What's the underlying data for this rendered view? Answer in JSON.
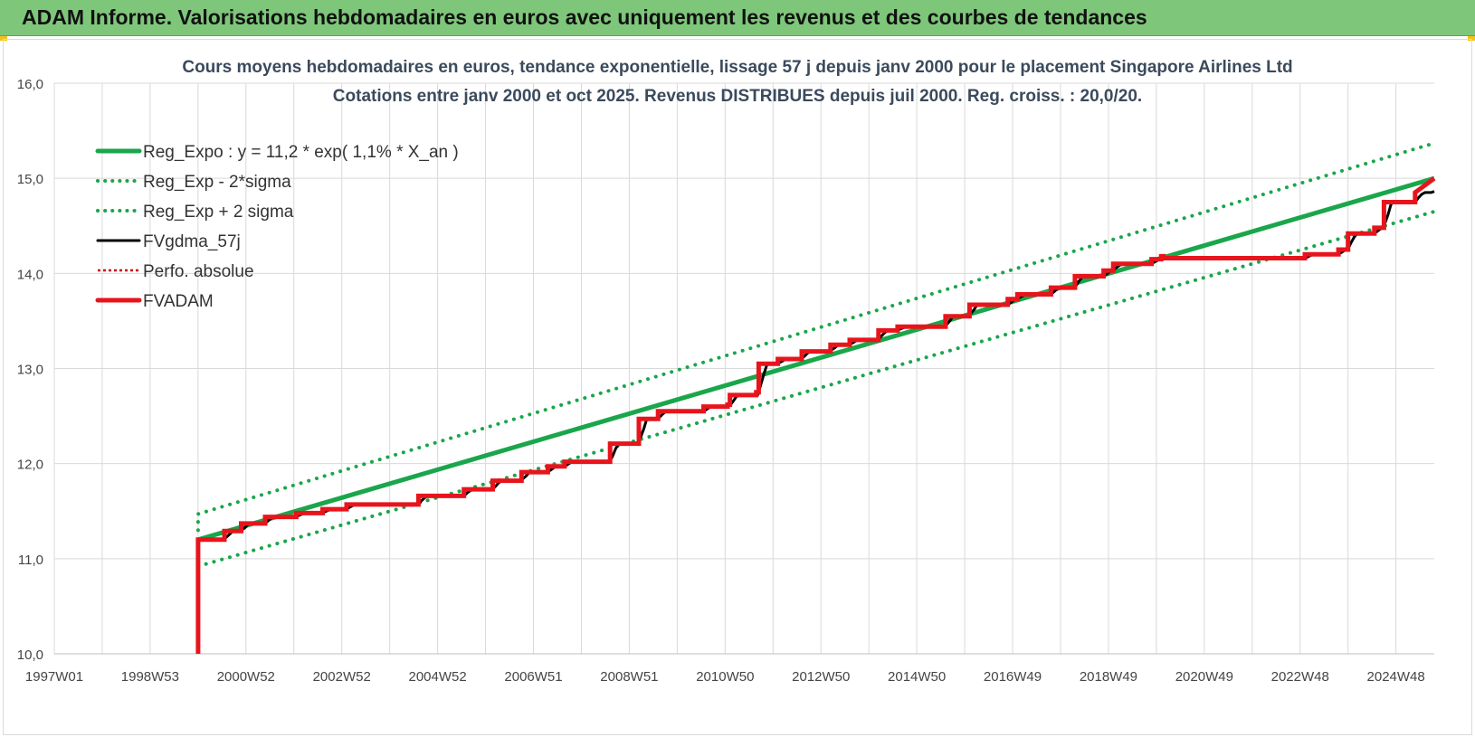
{
  "header": {
    "title": "ADAM Informe. Valorisations hebdomadaires en euros avec uniquement les revenus et des courbes de tendances"
  },
  "colors": {
    "banner": "#7ec77a",
    "trend_green": "#1aa64a",
    "band_green": "#1aa64a",
    "fvgdma_black": "#000000",
    "perfo_red": "#cc0000",
    "fvadam_red": "#e8141c"
  },
  "chart_data": {
    "type": "line",
    "title_line1": "Cours moyens hebdomadaires en euros, tendance exponentielle, lissage 57 j depuis janv 2000 pour le placement Singapore Airlines Ltd",
    "title_line2": "Cotations entre janv 2000 et oct 2025. Revenus DISTRIBUES depuis juil 2000. Reg. croiss. : 20,0/20.",
    "xlabel": "",
    "ylabel": "",
    "x_ticks": [
      "1997W01",
      "1998W53",
      "2000W52",
      "2002W52",
      "2004W52",
      "2006W51",
      "2008W51",
      "2010W50",
      "2012W50",
      "2014W50",
      "2016W49",
      "2018W49",
      "2020W49",
      "2022W48",
      "2024W48"
    ],
    "x_tick_years": [
      1997.0,
      1999.0,
      2001.0,
      2003.0,
      2005.0,
      2007.0,
      2009.0,
      2011.0,
      2013.0,
      2015.0,
      2017.0,
      2019.0,
      2021.0,
      2023.0,
      2025.0
    ],
    "xlim": [
      1997.0,
      2025.8
    ],
    "ylim": [
      10.0,
      16.0
    ],
    "y_ticks": [
      "10,0",
      "11,0",
      "12,0",
      "13,0",
      "14,0",
      "15,0",
      "16,0"
    ],
    "y_tick_values": [
      10,
      11,
      12,
      13,
      14,
      15,
      16
    ],
    "grid": true,
    "legend_position": "top-left",
    "legend": [
      {
        "label": "Reg_Expo : y = 11,2 * exp( 1,1% *  X_an )",
        "style": "solid-thick",
        "color": "#1aa64a"
      },
      {
        "label": "Reg_Exp - 2*sigma",
        "style": "dotted",
        "color": "#1aa64a"
      },
      {
        "label": "Reg_Exp + 2 sigma",
        "style": "dotted",
        "color": "#1aa64a"
      },
      {
        "label": "FVgdma_57j",
        "style": "solid",
        "color": "#000000"
      },
      {
        "label": "Perfo. absolue",
        "style": "dotted-thin",
        "color": "#cc0000"
      },
      {
        "label": "FVADAM",
        "style": "solid-thick",
        "color": "#e8141c"
      }
    ],
    "series": [
      {
        "name": "Reg_Expo : y = 11,2 * exp( 1,1% *  X_an )",
        "x": [
          2000.0,
          2025.8
        ],
        "y": [
          11.2,
          15.0
        ]
      },
      {
        "name": "Reg_Exp - 2*sigma",
        "x": [
          2000.0,
          2025.8
        ],
        "y": [
          10.92,
          14.65
        ]
      },
      {
        "name": "Reg_Exp + 2 sigma",
        "x": [
          2000.0,
          2000.0,
          2025.8
        ],
        "y": [
          11.3,
          11.47,
          15.37
        ]
      },
      {
        "name": "FVADAM",
        "x": [
          2000.0,
          2000.0,
          2000.55,
          2000.55,
          2000.9,
          2000.9,
          2001.4,
          2001.4,
          2002.05,
          2002.05,
          2002.6,
          2002.6,
          2003.1,
          2003.1,
          2004.6,
          2004.6,
          2005.55,
          2005.55,
          2006.15,
          2006.15,
          2006.75,
          2006.75,
          2007.3,
          2007.3,
          2007.65,
          2007.65,
          2008.6,
          2008.6,
          2009.2,
          2009.2,
          2009.6,
          2009.6,
          2010.55,
          2010.55,
          2011.05,
          2011.05,
          2011.1,
          2011.1,
          2011.65,
          2011.65,
          2011.7,
          2011.7,
          2012.1,
          2012.1,
          2012.6,
          2012.6,
          2013.2,
          2013.2,
          2013.6,
          2013.6,
          2014.2,
          2014.2,
          2014.6,
          2014.6,
          2015.6,
          2015.6,
          2016.1,
          2016.1,
          2016.9,
          2016.9,
          2017.1,
          2017.1,
          2017.8,
          2017.8,
          2018.3,
          2018.3,
          2018.9,
          2018.9,
          2019.1,
          2019.1,
          2019.9,
          2019.9,
          2020.1,
          2020.1,
          2020.15,
          2020.15,
          2023.1,
          2023.1,
          2023.8,
          2023.8,
          2024.0,
          2024.0,
          2024.55,
          2024.55,
          2024.75,
          2024.75,
          2025.4,
          2025.4,
          2025.8
        ],
        "y": [
          10.0,
          11.2,
          11.2,
          11.29,
          11.29,
          11.37,
          11.37,
          11.44,
          11.44,
          11.48,
          11.48,
          11.52,
          11.52,
          11.57,
          11.57,
          11.66,
          11.66,
          11.73,
          11.73,
          11.82,
          11.82,
          11.91,
          11.91,
          11.97,
          11.97,
          12.02,
          12.02,
          12.21,
          12.21,
          12.47,
          12.47,
          12.55,
          12.55,
          12.6,
          12.6,
          12.62,
          12.62,
          12.72,
          12.72,
          12.75,
          12.75,
          13.05,
          13.05,
          13.1,
          13.1,
          13.18,
          13.18,
          13.25,
          13.25,
          13.3,
          13.3,
          13.4,
          13.4,
          13.44,
          13.44,
          13.55,
          13.55,
          13.67,
          13.67,
          13.73,
          13.73,
          13.78,
          13.78,
          13.85,
          13.85,
          13.97,
          13.97,
          14.03,
          14.03,
          14.1,
          14.1,
          14.15,
          14.15,
          14.18,
          14.18,
          14.16,
          14.16,
          14.2,
          14.2,
          14.25,
          14.25,
          14.42,
          14.42,
          14.48,
          14.48,
          14.75,
          14.75,
          14.85,
          15.0
        ]
      }
    ]
  }
}
